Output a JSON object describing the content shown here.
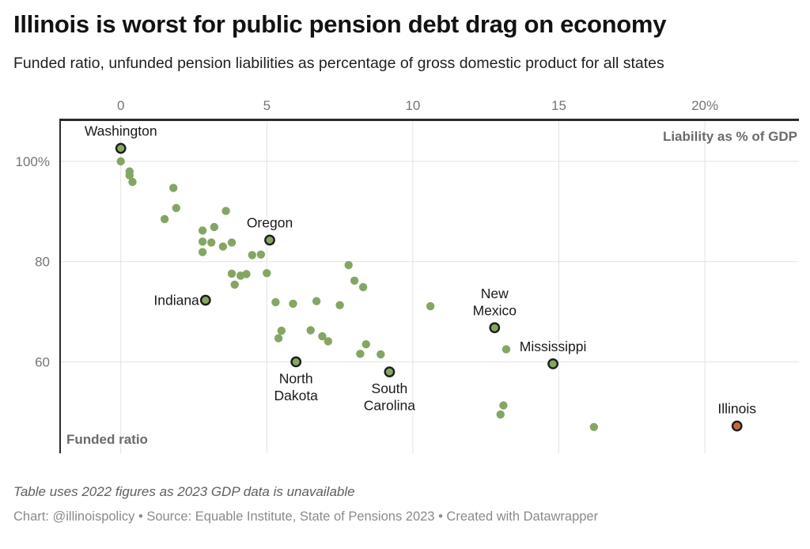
{
  "header": {
    "title": "Illinois is worst for public pension debt drag on economy",
    "subtitle": "Funded ratio, unfunded pension liabilities as percentage of gross domestic product for all states"
  },
  "axis": {
    "x": {
      "title": "Liability as % of GDP",
      "ticks": [
        {
          "value": 0,
          "label": "0"
        },
        {
          "value": 5,
          "label": "5"
        },
        {
          "value": 10,
          "label": "10"
        },
        {
          "value": 15,
          "label": "15"
        },
        {
          "value": 20,
          "label": "20%"
        }
      ]
    },
    "y": {
      "title": "Funded ratio",
      "ticks": [
        {
          "value": 100,
          "label": "100%"
        },
        {
          "value": 80,
          "label": "80"
        },
        {
          "value": 60,
          "label": "60"
        }
      ]
    }
  },
  "footer": {
    "note": "Table uses 2022 figures as 2023 GDP data is unavailable",
    "credit": "Chart: @illinoispolicy • Source: Equable Institute, State of Pensions 2023 • Created with Datawrapper"
  },
  "colors": {
    "dot_green": "#85a663",
    "dot_orange": "#c9653f",
    "dot_outline": "#1d1d1d",
    "grid": "#e2e2e2",
    "axis_line": "#2b2b2b",
    "tick_text": "#757575",
    "inner_label_text": "#6b6b6b",
    "state_label_text": "#1a1a1a"
  },
  "chart_data": {
    "type": "scatter",
    "title": "Illinois is worst for public pension debt drag on economy",
    "xlabel": "Liability as % of GDP",
    "ylabel": "Funded ratio",
    "xlim": [
      -2.1,
      23.2
    ],
    "ylim": [
      41.7,
      108.3
    ],
    "grid": true,
    "labeled_points": [
      {
        "name": "Washington",
        "x": 0.0,
        "y": 102.6,
        "label_lines": [
          "Washington"
        ],
        "label_position": "above",
        "highlight": false
      },
      {
        "name": "Oregon",
        "x": 5.1,
        "y": 84.3,
        "label_lines": [
          "Oregon"
        ],
        "label_position": "above",
        "highlight": false
      },
      {
        "name": "Indiana",
        "x": 2.9,
        "y": 72.3,
        "label_lines": [
          "Indiana"
        ],
        "label_position": "left",
        "highlight": false
      },
      {
        "name": "North Dakota",
        "x": 6.0,
        "y": 60.0,
        "label_lines": [
          "North",
          "Dakota"
        ],
        "label_position": "below",
        "highlight": false
      },
      {
        "name": "South Carolina",
        "x": 9.2,
        "y": 58.0,
        "label_lines": [
          "South",
          "Carolina"
        ],
        "label_position": "below",
        "highlight": false
      },
      {
        "name": "New Mexico",
        "x": 12.8,
        "y": 66.8,
        "label_lines": [
          "New",
          "Mexico"
        ],
        "label_position": "above",
        "highlight": false
      },
      {
        "name": "Mississippi",
        "x": 14.8,
        "y": 59.6,
        "label_lines": [
          "Mississippi"
        ],
        "label_position": "above",
        "highlight": false
      },
      {
        "name": "Illinois",
        "x": 21.1,
        "y": 47.2,
        "label_lines": [
          "Illinois"
        ],
        "label_position": "above",
        "highlight": true
      }
    ],
    "points": [
      {
        "x": 0.0,
        "y": 100.0
      },
      {
        "x": 0.3,
        "y": 98.0
      },
      {
        "x": 0.3,
        "y": 97.2
      },
      {
        "x": 0.4,
        "y": 95.9
      },
      {
        "x": 1.8,
        "y": 94.7
      },
      {
        "x": 1.9,
        "y": 90.7
      },
      {
        "x": 1.5,
        "y": 88.5
      },
      {
        "x": 3.6,
        "y": 90.1
      },
      {
        "x": 2.8,
        "y": 86.2
      },
      {
        "x": 3.2,
        "y": 86.9
      },
      {
        "x": 2.8,
        "y": 84.0
      },
      {
        "x": 3.1,
        "y": 83.8
      },
      {
        "x": 2.8,
        "y": 81.9
      },
      {
        "x": 3.5,
        "y": 83.0
      },
      {
        "x": 3.8,
        "y": 83.8
      },
      {
        "x": 4.5,
        "y": 81.3
      },
      {
        "x": 4.8,
        "y": 81.4
      },
      {
        "x": 5.0,
        "y": 77.7
      },
      {
        "x": 3.8,
        "y": 77.6
      },
      {
        "x": 4.1,
        "y": 77.2
      },
      {
        "x": 4.3,
        "y": 77.5
      },
      {
        "x": 3.9,
        "y": 75.4
      },
      {
        "x": 5.3,
        "y": 71.9
      },
      {
        "x": 5.9,
        "y": 71.6
      },
      {
        "x": 6.7,
        "y": 72.1
      },
      {
        "x": 7.5,
        "y": 71.3
      },
      {
        "x": 7.8,
        "y": 79.3
      },
      {
        "x": 8.0,
        "y": 76.2
      },
      {
        "x": 8.3,
        "y": 74.9
      },
      {
        "x": 10.6,
        "y": 71.1
      },
      {
        "x": 5.5,
        "y": 66.2
      },
      {
        "x": 5.4,
        "y": 64.7
      },
      {
        "x": 6.5,
        "y": 66.3
      },
      {
        "x": 6.9,
        "y": 65.1
      },
      {
        "x": 7.1,
        "y": 64.1
      },
      {
        "x": 8.4,
        "y": 63.5
      },
      {
        "x": 8.2,
        "y": 61.6
      },
      {
        "x": 8.9,
        "y": 61.5
      },
      {
        "x": 13.2,
        "y": 62.5
      },
      {
        "x": 13.1,
        "y": 51.3
      },
      {
        "x": 13.0,
        "y": 49.5
      },
      {
        "x": 16.2,
        "y": 47.0
      }
    ]
  }
}
